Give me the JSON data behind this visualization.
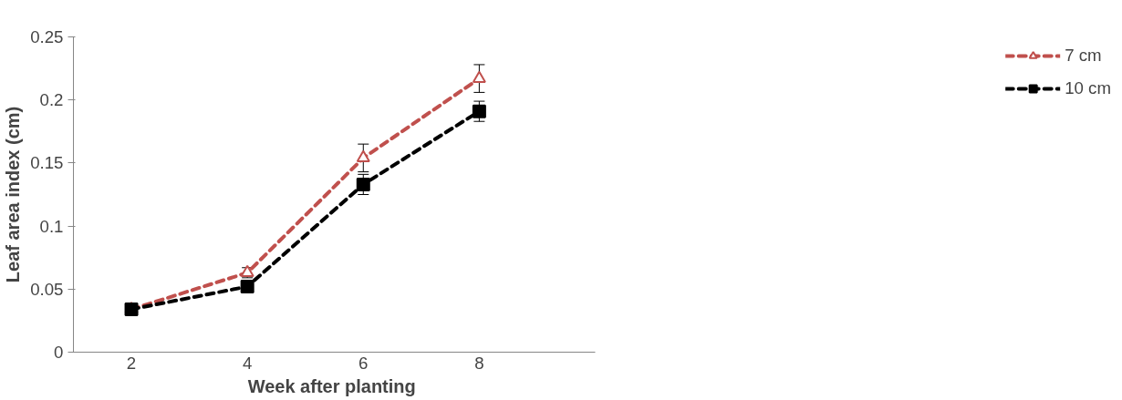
{
  "chart_data": {
    "type": "line",
    "xlabel": "Week  after planting",
    "ylabel": "Leaf area index (cm)",
    "categories": [
      "2",
      "4",
      "6",
      "8"
    ],
    "series": [
      {
        "name": "7 cm",
        "color": "#c0504d",
        "marker": "triangle",
        "values": [
          0.034,
          0.063,
          0.154,
          0.217
        ],
        "errors": [
          null,
          0.004,
          0.011,
          0.011
        ]
      },
      {
        "name": "10 cm",
        "color": "#000000",
        "marker": "square",
        "values": [
          0.034,
          0.052,
          0.133,
          0.191
        ],
        "errors": [
          null,
          0.004,
          0.008,
          0.008
        ]
      }
    ],
    "ylim": [
      0,
      0.25
    ],
    "yticks": [
      0,
      0.05,
      0.1,
      0.15,
      0.2,
      0.25
    ],
    "grid": false,
    "legend": "right",
    "line_style": "dashed"
  }
}
